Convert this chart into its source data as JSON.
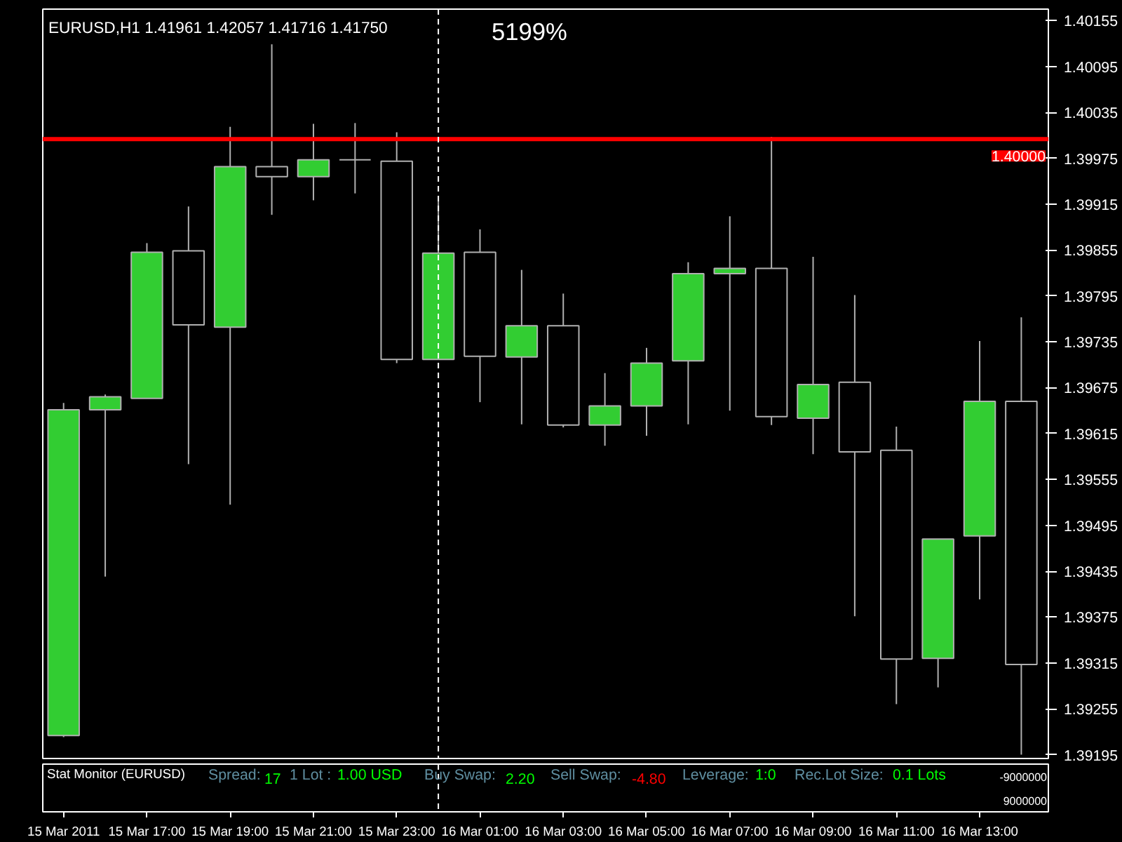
{
  "chart_data": {
    "type": "candlestick",
    "title": "EURUSD,H1  1.41961 1.42057 1.41716 1.41750",
    "annotations": [
      "5199%",
      "Stat Monitor (EURUSD)",
      "Spread:",
      "17",
      "1 Lot :",
      "1.00 USD",
      "Buy Swap:",
      "2.20",
      "Sell Swap:",
      "-4.80",
      "Leverage:",
      "1:0",
      "Rec.Lot Size:",
      "0.1 Lots",
      "-9000000",
      "9000000"
    ],
    "x": [
      "2011-03-15T15:00",
      "2011-03-15T16:00",
      "2011-03-15T17:00",
      "2011-03-15T18:00",
      "2011-03-15T19:00",
      "2011-03-15T20:00",
      "2011-03-15T21:00",
      "2011-03-15T22:00",
      "2011-03-15T23:00",
      "2011-03-16T00:00",
      "2011-03-16T01:00",
      "2011-03-16T02:00",
      "2011-03-16T03:00",
      "2011-03-16T04:00",
      "2011-03-16T05:00",
      "2011-03-16T06:00",
      "2011-03-16T07:00",
      "2011-03-16T08:00",
      "2011-03-16T09:00",
      "2011-03-16T10:00",
      "2011-03-16T11:00",
      "2011-03-16T12:00",
      "2011-03-16T13:00",
      "2011-03-16T14:00"
    ],
    "ohlc": [
      [
        1.3922,
        1.39655,
        1.39218,
        1.39646
      ],
      [
        1.39646,
        1.39666,
        1.39428,
        1.39663
      ],
      [
        1.39661,
        1.39864,
        1.39661,
        1.39852
      ],
      [
        1.39854,
        1.39912,
        1.39575,
        1.39757
      ],
      [
        1.39754,
        1.40016,
        1.39522,
        1.39964
      ],
      [
        1.39964,
        1.40124,
        1.39901,
        1.39951
      ],
      [
        1.39951,
        1.4002,
        1.3992,
        1.39973
      ],
      [
        1.39973,
        1.40021,
        1.39929,
        1.39973
      ],
      [
        1.39971,
        1.40009,
        1.39707,
        1.39712
      ],
      [
        1.39712,
        1.39919,
        1.39712,
        1.39851
      ],
      [
        1.39852,
        1.39882,
        1.39656,
        1.39716
      ],
      [
        1.39715,
        1.39829,
        1.39627,
        1.39756
      ],
      [
        1.39756,
        1.39798,
        1.39623,
        1.39626
      ],
      [
        1.39626,
        1.39694,
        1.39599,
        1.39651
      ],
      [
        1.39651,
        1.39727,
        1.39612,
        1.39707
      ],
      [
        1.3971,
        1.39839,
        1.39627,
        1.39824
      ],
      [
        1.39824,
        1.39899,
        1.39645,
        1.39831
      ],
      [
        1.39831,
        1.40003,
        1.39626,
        1.39637
      ],
      [
        1.39635,
        1.39846,
        1.39588,
        1.39679
      ],
      [
        1.39682,
        1.39796,
        1.39376,
        1.39591
      ],
      [
        1.39593,
        1.39624,
        1.39261,
        1.3932
      ],
      [
        1.39321,
        1.39477,
        1.39283,
        1.39477
      ],
      [
        1.39481,
        1.39736,
        1.39398,
        1.39657
      ],
      [
        1.39657,
        1.39767,
        1.39195,
        1.39313
      ]
    ],
    "colors": [
      "#32cd32",
      "#32cd32",
      "#32cd32",
      "#000000",
      "#32cd32",
      "#000000",
      "#32cd32",
      "#b0b0b0",
      "#000000",
      "#32cd32",
      "#000000",
      "#32cd32",
      "#000000",
      "#32cd32",
      "#32cd32",
      "#32cd32",
      "#32cd32",
      "#000000",
      "#32cd32",
      "#000000",
      "#000000",
      "#32cd32",
      "#32cd32",
      "#000000"
    ],
    "xlim": [
      "2011-03-15T14:30",
      "2011-03-16T14:39"
    ],
    "xticks": [
      {
        "value": "2011-03-15T15:00",
        "label": "15 Mar 2011"
      },
      {
        "value": "2011-03-15T17:00",
        "label": "15 Mar 17:00"
      },
      {
        "value": "2011-03-15T19:00",
        "label": "15 Mar 19:00"
      },
      {
        "value": "2011-03-15T21:00",
        "label": "15 Mar 21:00"
      },
      {
        "value": "2011-03-15T23:00",
        "label": "15 Mar 23:00"
      },
      {
        "value": "2011-03-16T01:00",
        "label": "16 Mar 01:00"
      },
      {
        "value": "2011-03-16T03:00",
        "label": "16 Mar 03:00"
      },
      {
        "value": "2011-03-16T05:00",
        "label": "16 Mar 05:00"
      },
      {
        "value": "2011-03-16T07:00",
        "label": "16 Mar 07:00"
      },
      {
        "value": "2011-03-16T09:00",
        "label": "16 Mar 09:00"
      },
      {
        "value": "2011-03-16T11:00",
        "label": "16 Mar 11:00"
      },
      {
        "value": "2011-03-16T13:00",
        "label": "16 Mar 13:00"
      }
    ],
    "ylim": [
      1.3919,
      1.4017
    ],
    "yticks": [
      1.40155,
      1.40095,
      1.40035,
      1.39975,
      1.39915,
      1.39855,
      1.39795,
      1.39735,
      1.39675,
      1.39615,
      1.39555,
      1.39495,
      1.39435,
      1.39375,
      1.39315,
      1.39255,
      1.39195
    ],
    "ref_lines": [
      {
        "axis": "y",
        "value": 1.4,
        "label": "1.40000",
        "color": "#ff0000",
        "line_style": "solid"
      },
      {
        "axis": "x",
        "value": "2011-03-16T00:00",
        "color": "#ffffff",
        "line_style": "dashed"
      }
    ],
    "grid": false
  }
}
